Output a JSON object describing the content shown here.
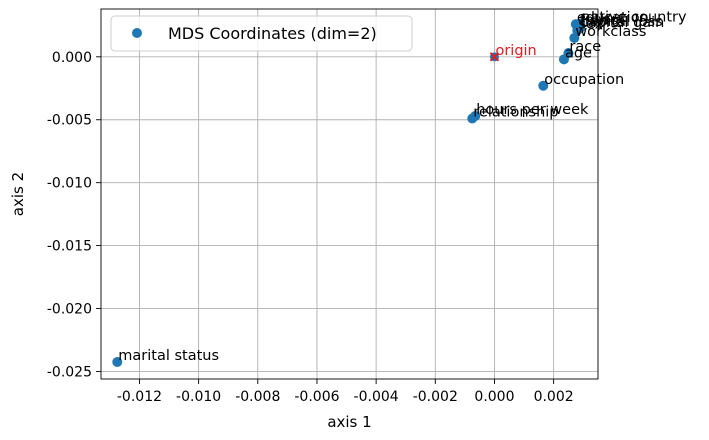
{
  "chart_data": {
    "type": "scatter",
    "title": "",
    "xlabel": "axis 1",
    "ylabel": "axis 2",
    "xlim": [
      -0.0133,
      0.0035
    ],
    "ylim": [
      -0.0256,
      0.0038
    ],
    "xticks": [
      -0.012,
      -0.01,
      -0.008,
      -0.006,
      -0.004,
      -0.002,
      0.0,
      0.002
    ],
    "xtick_labels": [
      "-0.012",
      "-0.010",
      "-0.008",
      "-0.006",
      "-0.004",
      "-0.002",
      "0.000",
      "0.002"
    ],
    "yticks": [
      0.0,
      -0.005,
      -0.01,
      -0.015,
      -0.02,
      -0.025
    ],
    "ytick_labels": [
      "0.000",
      "-0.005",
      "-0.010",
      "-0.015",
      "-0.020",
      "-0.025"
    ],
    "grid": true,
    "legend": {
      "placement": "top-left",
      "entries": [
        "MDS Coordinates (dim=2)"
      ]
    },
    "point_color": "#1f77b4",
    "origin_color": "#e41a1c",
    "origin": {
      "label": "origin",
      "x": 0.0,
      "y": 0.0
    },
    "series": [
      {
        "name": "MDS Coordinates (dim=2)",
        "points": [
          {
            "label": "marital status",
            "x": -0.01275,
            "y": -0.02425
          },
          {
            "label": "relationship",
            "x": -0.00075,
            "y": -0.0049
          },
          {
            "label": "hours per week",
            "x": -0.00065,
            "y": -0.0047
          },
          {
            "label": "occupation",
            "x": 0.00165,
            "y": -0.0023
          },
          {
            "label": "age",
            "x": 0.00235,
            "y": -0.0002
          },
          {
            "label": "race",
            "x": 0.0025,
            "y": 0.0003
          },
          {
            "label": "workclass",
            "x": 0.0027,
            "y": 0.0015
          },
          {
            "label": "fnlwgt",
            "x": 0.00285,
            "y": 0.0024
          },
          {
            "label": "native country",
            "x": 0.0029,
            "y": 0.00265
          },
          {
            "label": "education",
            "x": 0.00275,
            "y": 0.0026
          },
          {
            "label": "sex",
            "x": 0.0028,
            "y": 0.0021
          },
          {
            "label": "capital gain",
            "x": 0.00285,
            "y": 0.0022
          },
          {
            "label": "capital loss",
            "x": 0.0029,
            "y": 0.0023
          }
        ]
      }
    ]
  }
}
